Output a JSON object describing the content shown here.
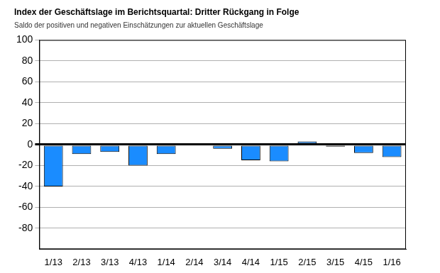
{
  "chart_data": {
    "type": "bar",
    "title": "Index der Geschäftslage im Berichtsquartal: Dritter Rückgang in Folge",
    "subtitle": "Saldo der positiven und negativen Einschätzungen zur aktuellen Geschäftslage",
    "categories": [
      "1/13",
      "2/13",
      "3/13",
      "4/13",
      "1/14",
      "2/14",
      "3/14",
      "4/14",
      "1/15",
      "2/15",
      "3/15",
      "4/15",
      "1/16"
    ],
    "values": [
      -40,
      -9,
      -7,
      -20,
      -9,
      -1,
      -4,
      -15,
      -16,
      3,
      -2,
      -8,
      -12
    ],
    "color": "#1a8cff",
    "ylim": [
      -100,
      100
    ],
    "yticks": [
      -80,
      -60,
      -40,
      -20,
      0,
      20,
      40,
      60,
      80,
      100
    ],
    "grid": true
  }
}
